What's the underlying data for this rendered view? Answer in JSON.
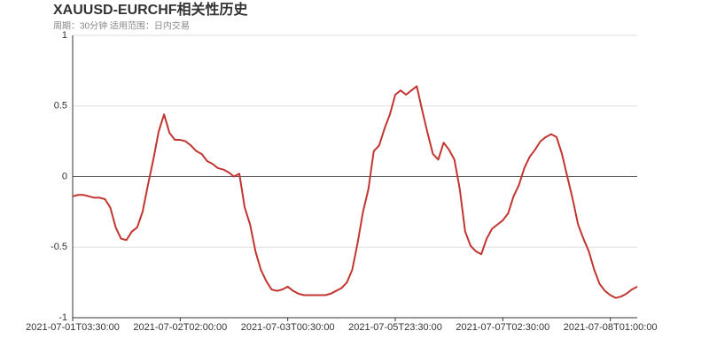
{
  "chart_data": {
    "type": "line",
    "title": "XAUUSD-EURCHF相关性历史",
    "subtitle": "周期：30分钟 适用范围：日内交易",
    "categories": [
      "2021-07-01T03:30:00",
      null,
      null,
      null,
      null,
      null,
      null,
      null,
      null,
      null,
      null,
      null,
      null,
      null,
      null,
      null,
      null,
      null,
      null,
      null,
      "2021-07-02T02:00:00",
      null,
      null,
      null,
      null,
      null,
      null,
      null,
      null,
      null,
      null,
      null,
      null,
      null,
      null,
      null,
      null,
      null,
      null,
      null,
      "2021-07-03T00:30:00",
      null,
      null,
      null,
      null,
      null,
      null,
      null,
      null,
      null,
      null,
      null,
      null,
      null,
      null,
      null,
      null,
      null,
      null,
      null,
      "2021-07-05T23:30:00",
      null,
      null,
      null,
      null,
      null,
      null,
      null,
      null,
      null,
      null,
      null,
      null,
      null,
      null,
      null,
      null,
      null,
      null,
      null,
      "2021-07-07T02:30:00",
      null,
      null,
      null,
      null,
      null,
      null,
      null,
      null,
      null,
      null,
      null,
      null,
      null,
      null,
      null,
      null,
      null,
      null,
      null,
      "2021-07-08T01:00:00",
      null,
      null,
      null,
      null,
      null
    ],
    "series": [
      {
        "color": "#c23531",
        "values": [
          -0.14,
          -0.13,
          -0.13,
          -0.14,
          -0.15,
          -0.15,
          -0.16,
          -0.22,
          -0.36,
          -0.44,
          -0.45,
          -0.39,
          -0.36,
          -0.25,
          -0.06,
          0.12,
          0.32,
          0.44,
          0.31,
          0.26,
          0.26,
          0.25,
          0.22,
          0.18,
          0.16,
          0.11,
          0.09,
          0.06,
          0.05,
          0.03,
          0,
          0.02,
          -0.22,
          -0.34,
          -0.53,
          -0.66,
          -0.74,
          -0.8,
          -0.81,
          -0.8,
          -0.78,
          -0.81,
          -0.83,
          -0.84,
          -0.84,
          -0.84,
          -0.84,
          -0.84,
          -0.83,
          -0.81,
          -0.79,
          -0.75,
          -0.66,
          -0.47,
          -0.25,
          -0.09,
          0.18,
          0.22,
          0.34,
          0.44,
          0.58,
          0.61,
          0.58,
          0.61,
          0.64,
          0.47,
          0.31,
          0.16,
          0.12,
          0.24,
          0.19,
          0.12,
          -0.09,
          -0.39,
          -0.49,
          -0.53,
          -0.55,
          -0.44,
          -0.37,
          -0.34,
          -0.31,
          -0.26,
          -0.14,
          -0.06,
          0.06,
          0.14,
          0.19,
          0.25,
          0.28,
          0.3,
          0.28,
          0.16,
          0,
          -0.16,
          -0.34,
          -0.44,
          -0.53,
          -0.66,
          -0.76,
          -0.81,
          -0.84,
          -0.86,
          -0.85,
          -0.83,
          -0.8,
          -0.78
        ]
      }
    ],
    "ylim": [
      -1,
      1
    ],
    "yticks": [
      -1,
      -0.5,
      0,
      0.5,
      1
    ],
    "grid": true
  }
}
